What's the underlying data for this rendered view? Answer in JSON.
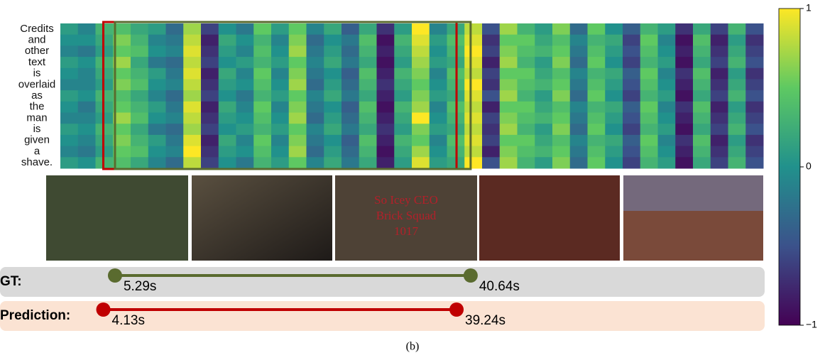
{
  "heatmap": {
    "words": [
      "Credits",
      "and",
      "other",
      "text",
      "is",
      "overlaid",
      "as",
      "the",
      "man",
      "is",
      "given",
      "a",
      "shave."
    ],
    "values": [
      [
        0.1,
        -0.1,
        0.3,
        0.4,
        0.2,
        0.1,
        -0.3,
        0.7,
        -0.6,
        0.0,
        -0.2,
        0.5,
        0.1,
        0.5,
        -0.1,
        0.2,
        -0.4,
        0.2,
        -0.7,
        0.1,
        1.0,
        -0.1,
        0.2,
        0.8,
        -0.5,
        0.7,
        0.3,
        0.1,
        0.6,
        -0.3,
        0.5,
        0.0,
        -0.4,
        0.3,
        0.1,
        -0.7,
        0.2,
        -0.6,
        0.3,
        -0.5
      ],
      [
        0.0,
        0.0,
        0.2,
        0.6,
        0.3,
        -0.1,
        -0.2,
        0.8,
        -0.8,
        0.2,
        0.0,
        0.3,
        -0.1,
        0.6,
        -0.3,
        0.0,
        -0.2,
        0.4,
        -0.9,
        0.3,
        0.9,
        0.1,
        0.4,
        0.9,
        -0.7,
        0.5,
        0.5,
        0.2,
        0.4,
        -0.1,
        0.3,
        0.2,
        -0.6,
        0.5,
        -0.1,
        -0.9,
        0.4,
        -0.8,
        0.1,
        -0.7
      ],
      [
        -0.1,
        -0.2,
        0.1,
        0.5,
        0.4,
        0.0,
        -0.1,
        0.9,
        -0.7,
        0.1,
        -0.1,
        0.4,
        0.0,
        0.7,
        -0.2,
        0.1,
        -0.3,
        0.3,
        -0.8,
        0.2,
        0.8,
        0.0,
        0.3,
        1.0,
        -0.6,
        0.6,
        0.4,
        0.3,
        0.5,
        -0.2,
        0.4,
        0.1,
        -0.5,
        0.4,
        0.0,
        -0.8,
        0.3,
        -0.7,
        0.2,
        -0.6
      ],
      [
        0.1,
        0.0,
        0.3,
        0.7,
        0.2,
        -0.2,
        -0.3,
        0.8,
        -0.6,
        0.0,
        0.1,
        0.3,
        0.1,
        0.5,
        -0.1,
        0.2,
        -0.2,
        0.2,
        -0.9,
        0.1,
        0.7,
        0.1,
        0.2,
        0.9,
        -0.8,
        0.7,
        0.3,
        0.1,
        0.6,
        -0.3,
        0.5,
        0.0,
        -0.6,
        0.3,
        0.1,
        -0.9,
        0.2,
        -0.6,
        0.3,
        -0.5
      ],
      [
        0.0,
        -0.1,
        0.2,
        0.5,
        0.3,
        0.1,
        -0.2,
        0.9,
        -0.8,
        0.2,
        -0.1,
        0.5,
        -0.1,
        0.6,
        -0.2,
        0.0,
        -0.4,
        0.4,
        -0.8,
        0.3,
        0.6,
        -0.1,
        0.4,
        0.8,
        -0.6,
        0.5,
        0.5,
        0.2,
        0.4,
        -0.1,
        0.3,
        0.2,
        -0.4,
        0.5,
        -0.1,
        -0.7,
        0.4,
        -0.8,
        0.1,
        -0.7
      ],
      [
        -0.1,
        -0.1,
        0.1,
        0.6,
        0.4,
        0.0,
        -0.1,
        0.8,
        -0.7,
        0.1,
        0.0,
        0.4,
        0.0,
        0.7,
        -0.3,
        0.1,
        -0.3,
        0.3,
        -0.7,
        0.2,
        0.5,
        0.0,
        0.3,
        1.0,
        -0.7,
        0.6,
        0.4,
        0.3,
        0.5,
        -0.2,
        0.4,
        0.1,
        -0.5,
        0.4,
        0.0,
        -0.8,
        0.3,
        -0.7,
        0.2,
        -0.6
      ],
      [
        0.1,
        0.0,
        0.3,
        0.4,
        0.2,
        -0.1,
        -0.3,
        0.7,
        -0.6,
        0.0,
        -0.2,
        0.3,
        0.1,
        0.5,
        -0.1,
        0.2,
        -0.2,
        0.2,
        -0.8,
        0.1,
        0.6,
        0.1,
        0.2,
        0.9,
        -0.5,
        0.7,
        0.3,
        0.1,
        0.6,
        -0.3,
        0.5,
        0.0,
        -0.6,
        0.3,
        0.1,
        -0.9,
        0.2,
        -0.6,
        0.3,
        -0.5
      ],
      [
        0.0,
        -0.2,
        0.2,
        0.5,
        0.3,
        0.1,
        -0.2,
        0.9,
        -0.8,
        0.2,
        -0.1,
        0.5,
        -0.1,
        0.6,
        -0.2,
        0.0,
        -0.4,
        0.4,
        -0.9,
        0.3,
        0.7,
        -0.1,
        0.4,
        0.8,
        -0.8,
        0.5,
        0.5,
        0.2,
        0.4,
        -0.1,
        0.3,
        0.2,
        -0.4,
        0.5,
        -0.1,
        -0.7,
        0.4,
        -0.8,
        0.1,
        -0.7
      ],
      [
        -0.1,
        -0.1,
        0.1,
        0.7,
        0.4,
        0.0,
        -0.1,
        0.8,
        -0.7,
        0.1,
        0.0,
        0.4,
        0.0,
        0.7,
        -0.3,
        0.1,
        -0.3,
        0.3,
        -0.8,
        0.2,
        1.0,
        0.0,
        0.3,
        0.9,
        -0.6,
        0.6,
        0.4,
        0.3,
        0.5,
        -0.2,
        0.4,
        0.1,
        -0.5,
        0.4,
        0.0,
        -0.8,
        0.3,
        -0.7,
        0.2,
        -0.6
      ],
      [
        0.1,
        0.0,
        0.3,
        0.5,
        0.2,
        -0.2,
        -0.3,
        0.7,
        -0.6,
        0.0,
        0.1,
        0.3,
        0.1,
        0.5,
        -0.1,
        0.2,
        -0.2,
        0.2,
        -0.7,
        0.1,
        0.6,
        0.1,
        0.2,
        0.8,
        -0.7,
        0.7,
        0.3,
        0.1,
        0.6,
        -0.3,
        0.5,
        0.0,
        -0.6,
        0.3,
        0.1,
        -0.9,
        0.2,
        -0.6,
        0.3,
        -0.5
      ],
      [
        0.0,
        -0.1,
        0.2,
        0.6,
        0.3,
        0.1,
        -0.2,
        0.9,
        -0.8,
        0.2,
        -0.1,
        0.5,
        -0.1,
        0.6,
        -0.2,
        0.0,
        -0.4,
        0.4,
        -0.8,
        0.3,
        0.5,
        -0.1,
        0.4,
        0.9,
        -0.6,
        0.5,
        0.5,
        0.2,
        0.4,
        -0.1,
        0.3,
        0.2,
        -0.4,
        0.5,
        -0.1,
        -0.7,
        0.4,
        -0.8,
        0.1,
        -0.7
      ],
      [
        -0.1,
        -0.2,
        0.1,
        0.5,
        0.4,
        0.0,
        -0.1,
        1.0,
        -0.7,
        0.1,
        0.0,
        0.4,
        0.0,
        0.7,
        -0.3,
        0.1,
        -0.3,
        0.3,
        -0.9,
        0.2,
        0.7,
        0.0,
        0.3,
        0.8,
        -0.8,
        0.6,
        0.4,
        0.3,
        0.5,
        -0.2,
        0.4,
        0.1,
        -0.5,
        0.4,
        0.0,
        -0.8,
        0.3,
        -0.7,
        0.2,
        -0.6
      ],
      [
        0.1,
        0.0,
        0.3,
        0.4,
        0.2,
        -0.1,
        -0.3,
        0.8,
        -0.6,
        0.0,
        -0.2,
        0.3,
        0.1,
        0.5,
        -0.1,
        0.2,
        -0.2,
        0.2,
        -0.8,
        0.1,
        0.9,
        0.1,
        0.2,
        1.0,
        -0.5,
        0.7,
        0.3,
        0.1,
        0.6,
        -0.3,
        0.5,
        0.0,
        -0.6,
        0.3,
        0.1,
        -0.9,
        0.2,
        -0.6,
        0.3,
        -0.5
      ]
    ],
    "colorbar": {
      "lim": [
        -1,
        1
      ],
      "ticks": [
        {
          "value": -1,
          "label": "−1"
        },
        0,
        1
      ]
    }
  },
  "frame_overlay_text": [
    "So Icey CEO",
    "Brick Squad",
    "1017"
  ],
  "timeline": {
    "gt": {
      "label": "GT:",
      "start": 5.29,
      "end": 40.64,
      "start_label": "5.29s",
      "end_label": "40.64s"
    },
    "prediction": {
      "label": "Prediction:",
      "start": 4.13,
      "end": 39.24,
      "start_label": "4.13s",
      "end_label": "39.24s"
    }
  },
  "caption": "(b)"
}
